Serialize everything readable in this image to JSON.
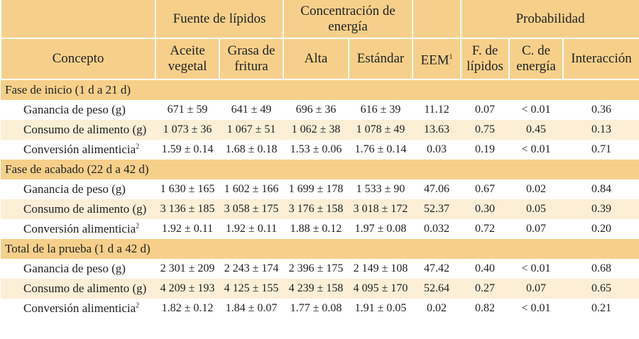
{
  "header": {
    "concept": "Concepto",
    "lipid_source": "Fuente de lípidos",
    "energy": "Concentración de energía",
    "probability": "Probabilidad",
    "columns": [
      "Aceite vegetal",
      "Grasa de fritura",
      "Alta",
      "Estándar",
      "EEM",
      "F. de lípidos",
      "C. de energía",
      "Interacción"
    ],
    "eem_note": "1"
  },
  "sections": [
    {
      "title": "Fase de inicio (1 d a 21 d)",
      "rows": [
        {
          "concept": "Ganancia de peso (g)",
          "cells": [
            "671 ± 59",
            "641 ± 49",
            "696 ± 36",
            "616 ± 39",
            "11.12",
            "0.07",
            "< 0.01",
            "0.36"
          ]
        },
        {
          "concept": "Consumo de alimento (g)",
          "cells": [
            "1 073 ± 36",
            "1 067 ± 51",
            "1 062 ± 38",
            "1 078 ± 49",
            "13.63",
            "0.75",
            "0.45",
            "0.13"
          ]
        },
        {
          "concept": "Conversión alimenticia",
          "note": "2",
          "cells": [
            "1.59 ± 0.14",
            "1.68 ± 0.18",
            "1.53 ± 0.06",
            "1.76 ± 0.14",
            "0.03",
            "0.19",
            "< 0.01",
            "0.71"
          ]
        }
      ]
    },
    {
      "title": "Fase de acabado (22 d a 42 d)",
      "rows": [
        {
          "concept": "Ganancia de peso (g)",
          "cells": [
            "1 630 ± 165",
            "1 602 ± 166",
            "1 699 ± 178",
            "1 533 ± 90",
            "47.06",
            "0.67",
            "0.02",
            "0.84"
          ]
        },
        {
          "concept": "Consumo de alimento (g)",
          "cells": [
            "3 136 ± 185",
            "3 058 ± 175",
            "3 176 ± 158",
            "3 018 ± 172",
            "52.37",
            "0.30",
            "0.05",
            "0.39"
          ]
        },
        {
          "concept": "Conversión alimenticia",
          "note": "2",
          "cells": [
            "1.92 ± 0.11",
            "1.92 ± 0.11",
            "1.88 ± 0.12",
            "1.97 ± 0.08",
            "0.032",
            "0.72",
            "0.07",
            "0.20"
          ]
        }
      ]
    },
    {
      "title": "Total de la prueba (1 d a 42 d)",
      "rows": [
        {
          "concept": "Ganancia de peso (g)",
          "cells": [
            "2 301 ± 209",
            "2 243 ± 174",
            "2 396 ± 175",
            "2 149 ± 108",
            "47.42",
            "0.40",
            "< 0.01",
            "0.68"
          ]
        },
        {
          "concept": "Consumo de alimento (g)",
          "cells": [
            "4 209 ± 193",
            "4 125 ± 155",
            "4 239 ± 158",
            "4 095 ± 170",
            "52.64",
            "0.27",
            "0.07",
            "0.65"
          ]
        },
        {
          "concept": "Conversión alimenticia",
          "note": "2",
          "cells": [
            "1.82 ± 0.12",
            "1.84 ± 0.07",
            "1.77 ± 0.08",
            "1.91 ± 0.05",
            "0.02",
            "0.82",
            "< 0.01",
            "0.21"
          ]
        }
      ]
    }
  ]
}
